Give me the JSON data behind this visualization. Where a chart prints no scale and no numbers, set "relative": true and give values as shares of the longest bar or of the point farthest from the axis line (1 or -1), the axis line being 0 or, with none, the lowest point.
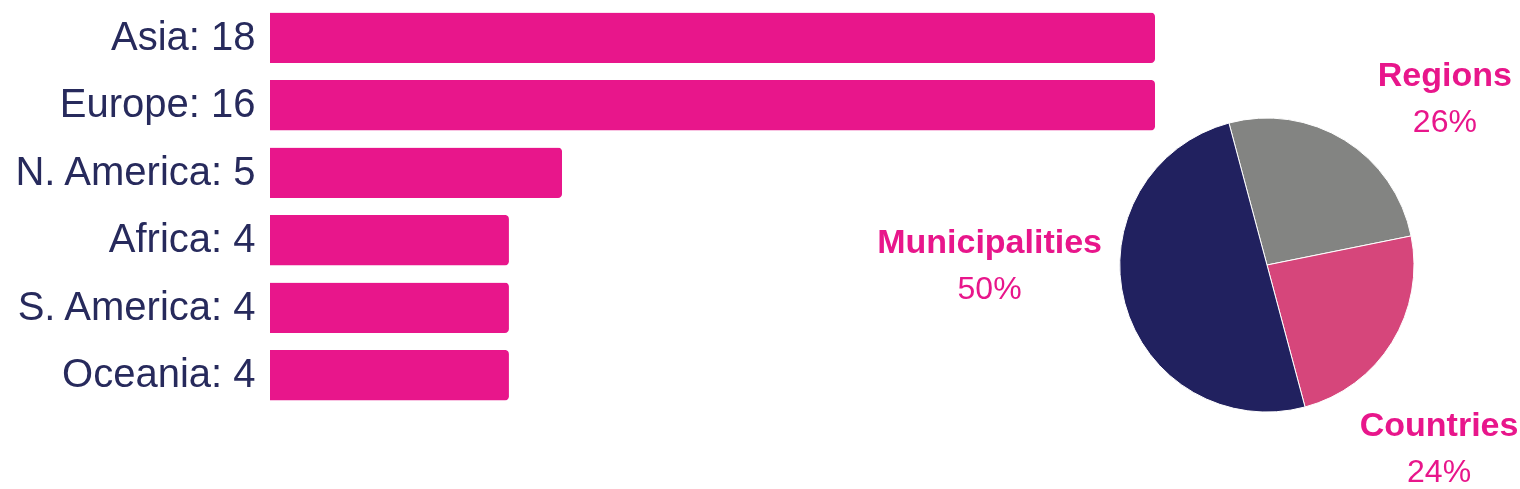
{
  "chart_data": [
    {
      "type": "bar",
      "orientation": "horizontal",
      "relative": true,
      "categories": [
        "Asia: 18",
        "Europe: 16",
        "N. America: 5",
        "Africa: 4",
        "S. America: 4",
        "Oceania: 4"
      ],
      "values": [
        1,
        1,
        0.33,
        0.27,
        0.27,
        0.27
      ],
      "color": "#e8168b"
    },
    {
      "type": "pie",
      "categories": [
        "Regions",
        "Countries",
        "Municipalities"
      ],
      "values": [
        26,
        24,
        50
      ],
      "colors": [
        "#838482",
        "#d6467b",
        "#21215f"
      ],
      "value_labels": [
        "26%",
        "24%",
        "50%"
      ]
    }
  ]
}
